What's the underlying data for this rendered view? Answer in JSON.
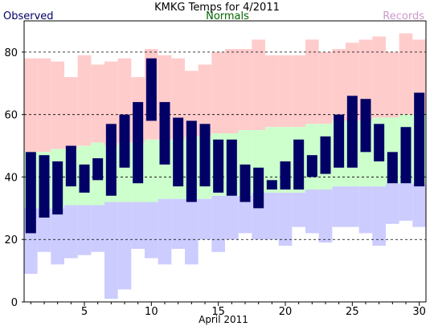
{
  "chart_data": {
    "type": "bar",
    "title": "KMKG Temps for 4/2011",
    "xlabel": "April 2011",
    "ylabel": "",
    "ylim": [
      0,
      90
    ],
    "xlim": [
      0.5,
      30.5
    ],
    "yticks": [
      0,
      20,
      40,
      60,
      80
    ],
    "xticks": [
      5,
      10,
      15,
      20,
      25,
      30
    ],
    "grid": "dashed horizontal at 20, 40, 60, 80",
    "legend": {
      "placement": "top",
      "observed": "Observed",
      "normals": "Normals",
      "records": "Records"
    },
    "colors": {
      "observed": "#000066",
      "normals": "#ccffcc",
      "records": "#ffcccc",
      "records_low": "#ccccff",
      "legend_observed": "#000066",
      "legend_normals": "#006600",
      "legend_records": "#cc99cc"
    },
    "days": [
      1,
      2,
      3,
      4,
      5,
      6,
      7,
      8,
      9,
      10,
      11,
      12,
      13,
      14,
      15,
      16,
      17,
      18,
      19,
      20,
      21,
      22,
      23,
      24,
      25,
      26,
      27,
      28,
      29,
      30
    ],
    "record_high": [
      78,
      78,
      77,
      72,
      79,
      76,
      77,
      78,
      72,
      81,
      79,
      78,
      74,
      76,
      80,
      81,
      81,
      84,
      79,
      79,
      79,
      84,
      80,
      81,
      83,
      84,
      85,
      80,
      86,
      84
    ],
    "record_low": [
      9,
      16,
      12,
      14,
      15,
      16,
      1,
      4,
      17,
      14,
      12,
      17,
      12,
      20,
      16,
      20,
      22,
      20,
      20,
      18,
      24,
      22,
      19,
      24,
      24,
      22,
      18,
      25,
      26,
      24
    ],
    "normal_high": [
      48,
      48,
      49,
      49,
      50,
      51,
      50,
      51,
      51,
      52,
      52,
      52,
      53,
      53,
      54,
      54,
      55,
      55,
      56,
      56,
      56,
      57,
      57,
      58,
      58,
      58,
      59,
      59,
      60,
      60
    ],
    "normal_low": [
      30,
      30,
      30,
      31,
      31,
      31,
      32,
      32,
      32,
      32,
      33,
      33,
      33,
      33,
      34,
      34,
      34,
      35,
      35,
      35,
      35,
      36,
      36,
      37,
      37,
      37,
      37,
      38,
      38,
      38
    ],
    "observed_high": [
      48,
      47,
      45,
      50,
      44,
      46,
      57,
      60,
      64,
      78,
      64,
      59,
      58,
      57,
      52,
      52,
      44,
      43,
      39,
      45,
      52,
      47,
      53,
      60,
      66,
      65,
      57,
      48,
      56,
      67
    ],
    "observed_low": [
      22,
      27,
      28,
      37,
      35,
      39,
      34,
      43,
      38,
      58,
      44,
      37,
      32,
      37,
      35,
      34,
      32,
      30,
      36,
      36,
      36,
      40,
      41,
      43,
      43,
      48,
      45,
      38,
      38,
      37
    ]
  }
}
